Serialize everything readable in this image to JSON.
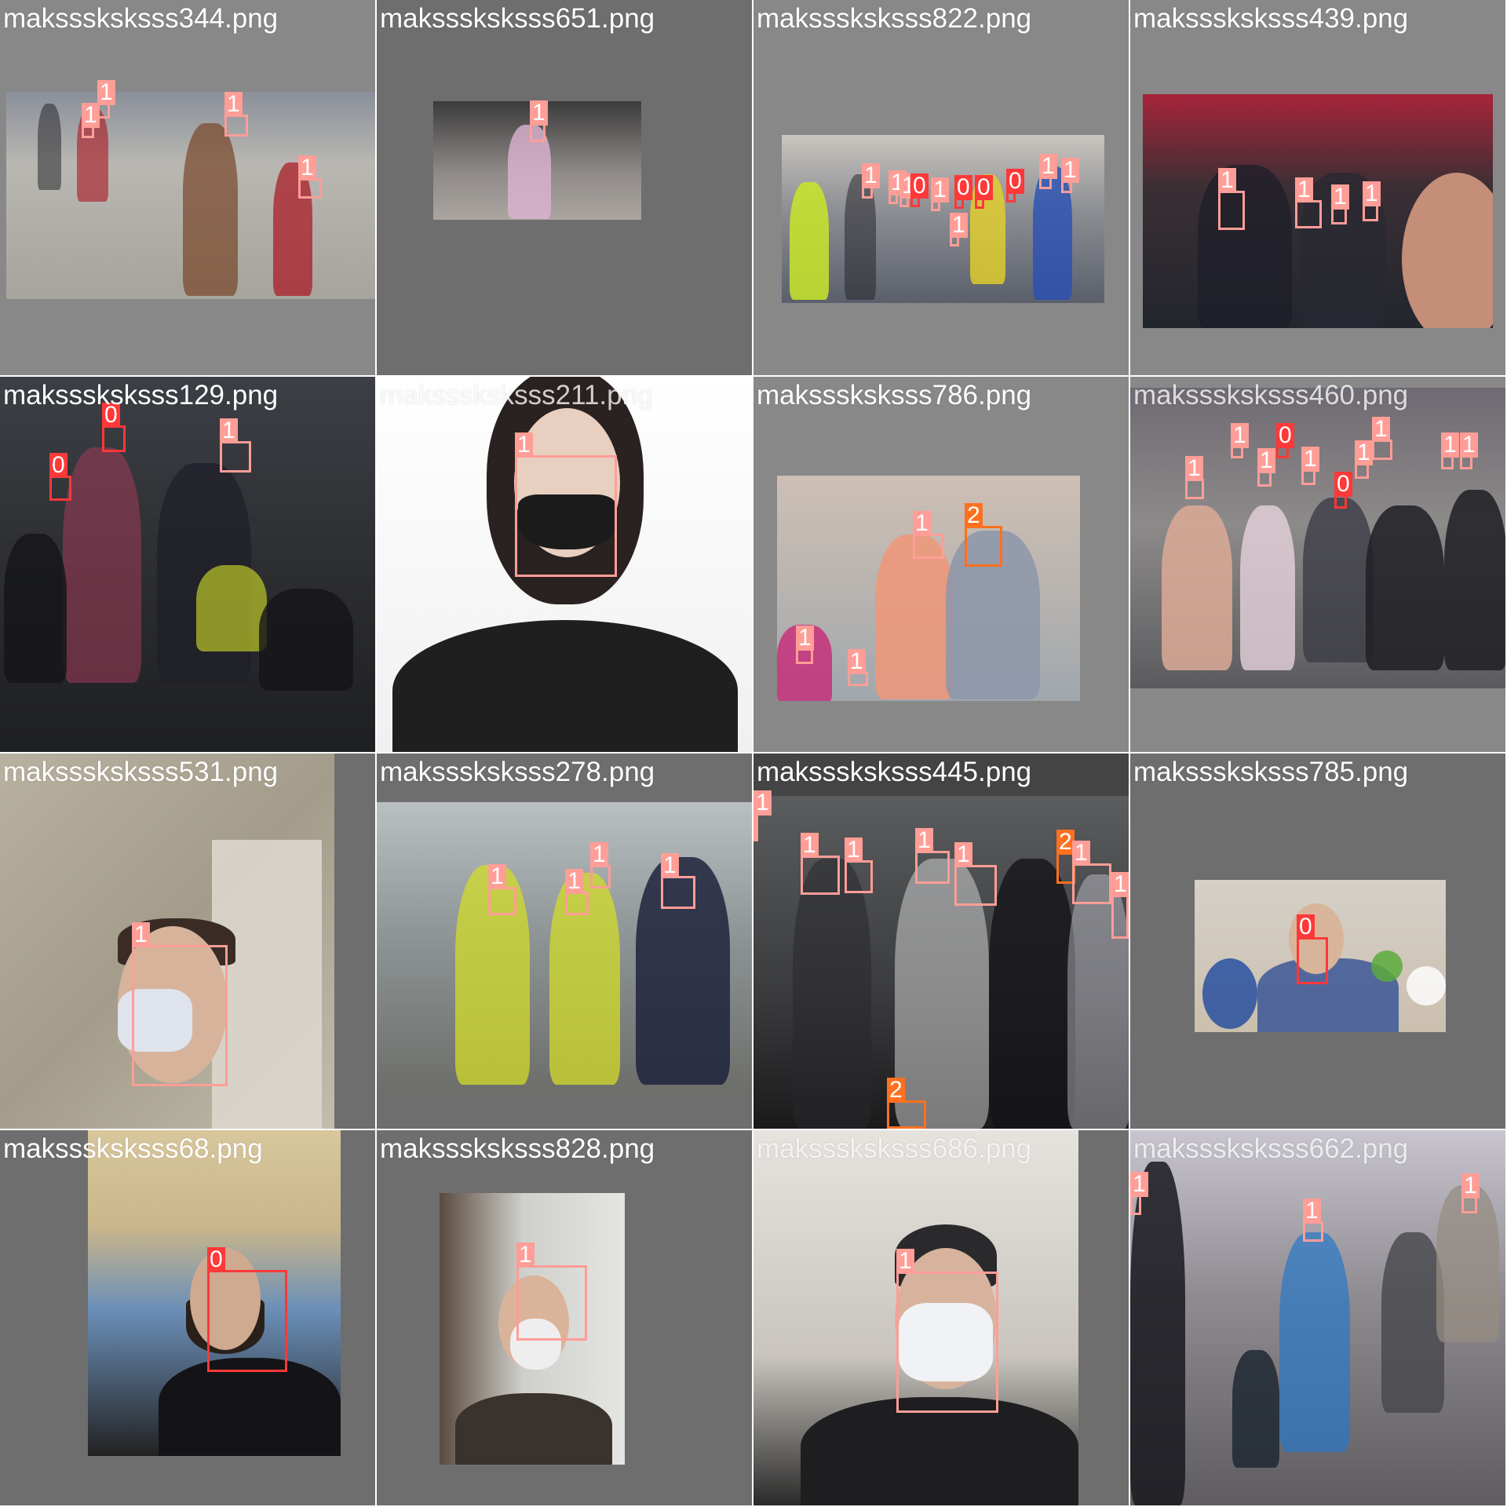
{
  "tiles": [
    {
      "filename": "maksssksksss344.png",
      "labels": [
        "1",
        "1",
        "1",
        "1"
      ]
    },
    {
      "filename": "maksssksksss651.png",
      "labels": [
        "1"
      ]
    },
    {
      "filename": "maksssksksss822.png",
      "labels": [
        "1",
        "1",
        "1",
        "0",
        "1",
        "0",
        "0",
        "0",
        "1",
        "1",
        "1"
      ]
    },
    {
      "filename": "maksssksksss439.png",
      "labels": [
        "1",
        "1",
        "1",
        "1"
      ]
    },
    {
      "filename": "maksssksksss129.png",
      "labels": [
        "0",
        "1",
        "0"
      ]
    },
    {
      "filename": "maksssksksss211.png",
      "labels": [
        "1"
      ]
    },
    {
      "filename": "maksssksksss786.png",
      "labels": [
        "1",
        "2",
        "1",
        "1"
      ]
    },
    {
      "filename": "maksssksksss460.png",
      "labels": [
        "1",
        "1",
        "0",
        "1",
        "1",
        "0",
        "1",
        "1",
        "1",
        "1"
      ]
    },
    {
      "filename": "maksssksksss531.png",
      "labels": [
        "1"
      ]
    },
    {
      "filename": "maksssksksss278.png",
      "labels": [
        "1",
        "1",
        "1",
        "1"
      ]
    },
    {
      "filename": "maksssksksss445.png",
      "labels": [
        "1",
        "1",
        "1",
        "1",
        "1",
        "2",
        "1",
        "1",
        "2"
      ]
    },
    {
      "filename": "maksssksksss785.png",
      "labels": [
        "0"
      ]
    },
    {
      "filename": "maksssksksss68.png",
      "labels": [
        "0"
      ]
    },
    {
      "filename": "maksssksksss828.png",
      "labels": [
        "1"
      ]
    },
    {
      "filename": "maksssksksss686.png",
      "labels": [
        "1"
      ]
    },
    {
      "filename": "maksssksksss662.png",
      "labels": [
        "1",
        "1",
        "1"
      ]
    }
  ],
  "colors": {
    "class_0": "#ff3838",
    "class_1": "#ff9d97",
    "class_2": "#ff701f",
    "padding_gray": "#888888",
    "padding_dark": "#6e6e6e"
  }
}
